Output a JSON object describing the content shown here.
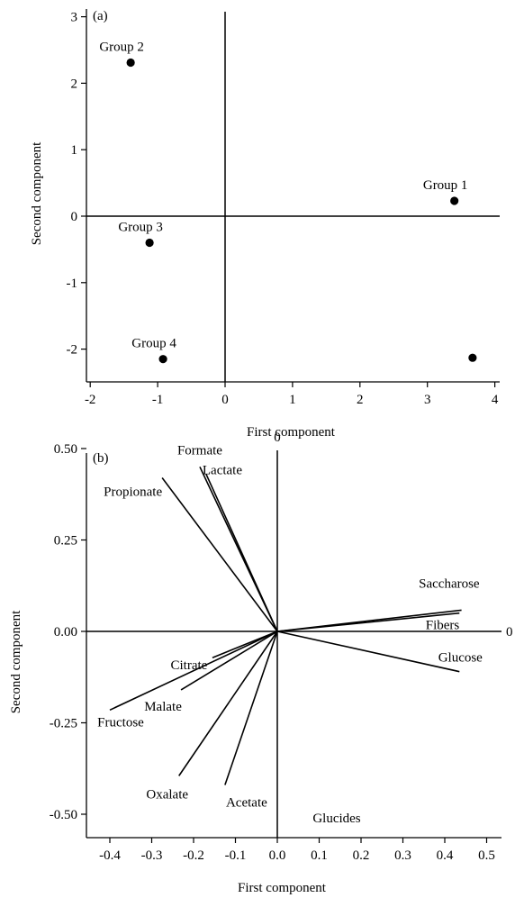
{
  "chart_data": [
    {
      "type": "scatter",
      "panel_label": "(a)",
      "xlabel": "First component",
      "ylabel": "Second component",
      "xlim": [
        -2.2,
        4.1
      ],
      "ylim": [
        -2.45,
        3.1
      ],
      "x_ticks": [
        "-2",
        "-1",
        "0",
        "1",
        "2",
        "3",
        "4"
      ],
      "y_ticks": [
        "3",
        "2",
        "1",
        "0",
        "-1",
        "-2"
      ],
      "reference_lines": [
        "x = 0",
        "y = 0"
      ],
      "points": [
        {
          "label": "Group 1",
          "x": 3.4,
          "y": 0.23
        },
        {
          "label": "Group 2",
          "x": -1.4,
          "y": 2.31
        },
        {
          "label": "Group 3",
          "x": -1.12,
          "y": -0.4
        },
        {
          "label": "Group 4",
          "x": -0.92,
          "y": -2.15
        },
        {
          "label": "",
          "x": 3.67,
          "y": -2.13
        }
      ]
    },
    {
      "type": "line",
      "panel_label": "(b)",
      "xlabel": "First component",
      "ylabel": "Second component",
      "xlim": [
        -0.45,
        0.52
      ],
      "ylim": [
        -0.52,
        0.53
      ],
      "x_ticks": [
        "-0.4",
        "-0.3",
        "-0.2",
        "-0.1",
        "0.0",
        "0.1",
        "0.2",
        "0.3",
        "0.4",
        "0.5"
      ],
      "y_ticks": [
        "0.50",
        "0.25",
        "0.00",
        "-0.25",
        "-0.50"
      ],
      "zero_line_labels": [
        "0",
        "0"
      ],
      "vectors": [
        {
          "label": "Formate",
          "x": -0.185,
          "y": 0.45
        },
        {
          "label": "Lactate",
          "x": -0.17,
          "y": 0.43
        },
        {
          "label": "Propionate",
          "x": -0.275,
          "y": 0.42
        },
        {
          "label": "Saccharose",
          "x": 0.44,
          "y": 0.058
        },
        {
          "label": "Fibers",
          "x": 0.435,
          "y": 0.05
        },
        {
          "label": "Glucose",
          "x": 0.435,
          "y": -0.11
        },
        {
          "label": "Citrate",
          "x": -0.155,
          "y": -0.072
        },
        {
          "label": "Malate",
          "x": -0.23,
          "y": -0.16
        },
        {
          "label": "Fructose",
          "x": -0.4,
          "y": -0.215
        },
        {
          "label": "Oxalate",
          "x": -0.235,
          "y": -0.395
        },
        {
          "label": "Acetate",
          "x": -0.125,
          "y": -0.42
        },
        {
          "label": "Glucides",
          "x": 0,
          "y": 0
        }
      ]
    }
  ]
}
